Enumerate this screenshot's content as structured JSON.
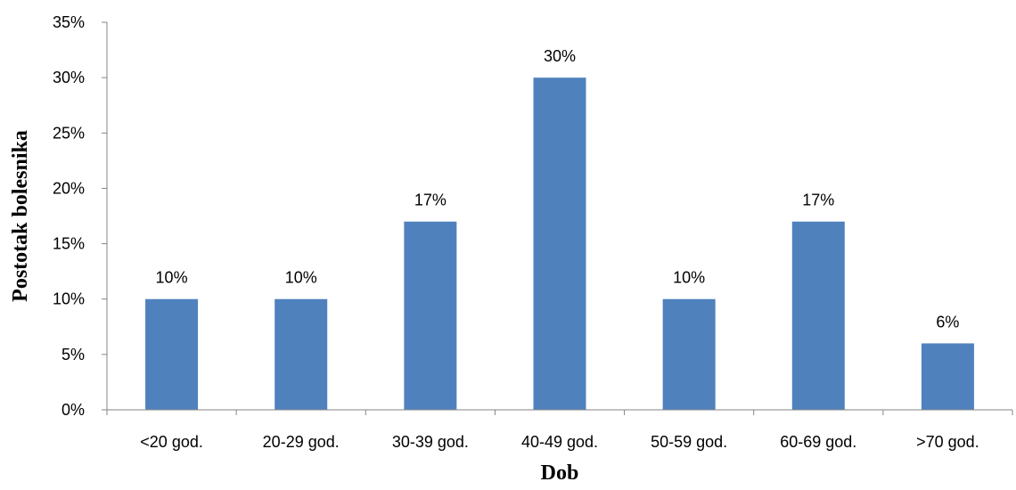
{
  "chart_data": {
    "type": "bar",
    "title": "",
    "xlabel": "Dob",
    "ylabel": "Postotak bolesnika",
    "categories": [
      "<20 god.",
      "20-29 god.",
      "30-39 god.",
      "40-49 god.",
      "50-59 god.",
      "60-69 god.",
      ">70 god."
    ],
    "values": [
      10,
      10,
      17,
      30,
      10,
      17,
      6
    ],
    "value_labels": [
      "10%",
      "10%",
      "17%",
      "30%",
      "10%",
      "17%",
      "6%"
    ],
    "ylim": [
      0,
      35
    ],
    "yticks": [
      0,
      5,
      10,
      15,
      20,
      25,
      30,
      35
    ],
    "ytick_labels": [
      "0%",
      "5%",
      "10%",
      "15%",
      "20%",
      "25%",
      "30%",
      "35%"
    ],
    "grid": false,
    "legend": "none",
    "bar_color": "#4F81BD",
    "axis_color": "#868686"
  }
}
